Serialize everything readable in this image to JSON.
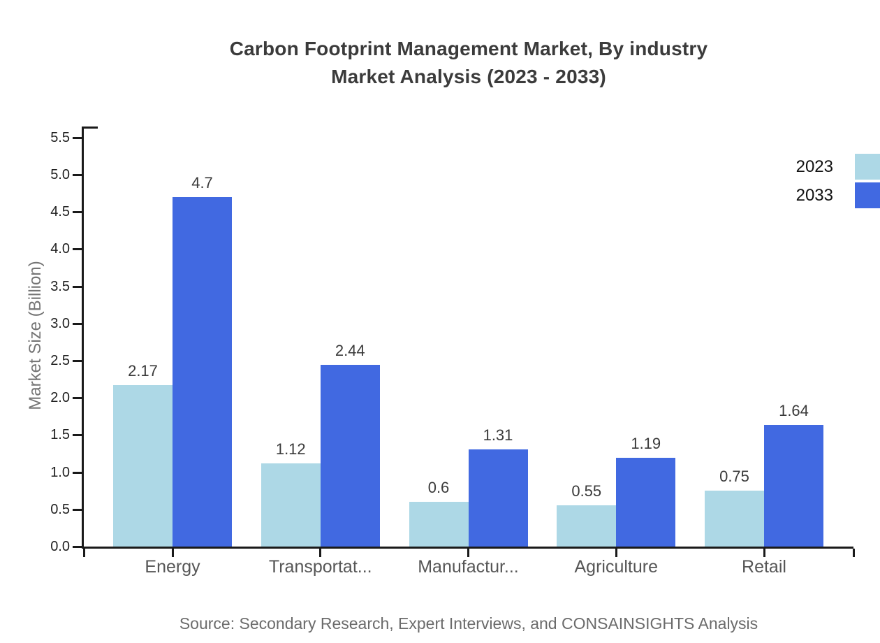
{
  "title": {
    "line1": "Carbon Footprint Management Market, By industry",
    "line2": "Market Analysis (2023 - 2033)"
  },
  "source_note": "Source: Secondary Research, Expert Interviews, and CONSAINSIGHTS Analysis",
  "legend": {
    "items": [
      {
        "label": "2023",
        "color": "#ADD8E6"
      },
      {
        "label": "2033",
        "color": "#4169E1"
      }
    ]
  },
  "chart_data": {
    "type": "bar",
    "title": "Carbon Footprint Management Market, By industry Market Analysis (2023 - 2033)",
    "categories": [
      "Energy",
      "Transportat...",
      "Manufactur...",
      "Agriculture",
      "Retail"
    ],
    "series": [
      {
        "name": "2023",
        "color": "#ADD8E6",
        "values": [
          2.17,
          1.12,
          0.6,
          0.55,
          0.75
        ]
      },
      {
        "name": "2033",
        "color": "#4169E1",
        "values": [
          4.7,
          2.44,
          1.31,
          1.19,
          1.64
        ]
      }
    ],
    "xlabel": "",
    "ylabel": "Market Size (Billion)",
    "ylim": [
      0,
      5.5
    ],
    "ytick_step": 0.5,
    "ytick_labels": [
      "0.0",
      "0.5",
      "1.0",
      "1.5",
      "2.0",
      "2.5",
      "3.0",
      "3.5",
      "4.0",
      "4.5",
      "5.0",
      "5.5"
    ],
    "grid": false,
    "legend_position": "top-right",
    "bar_value_labels": true,
    "value_labels": [
      [
        "2.17",
        "1.12",
        "0.6",
        "0.55",
        "0.75"
      ],
      [
        "4.7",
        "2.44",
        "1.31",
        "1.19",
        "1.64"
      ]
    ]
  }
}
